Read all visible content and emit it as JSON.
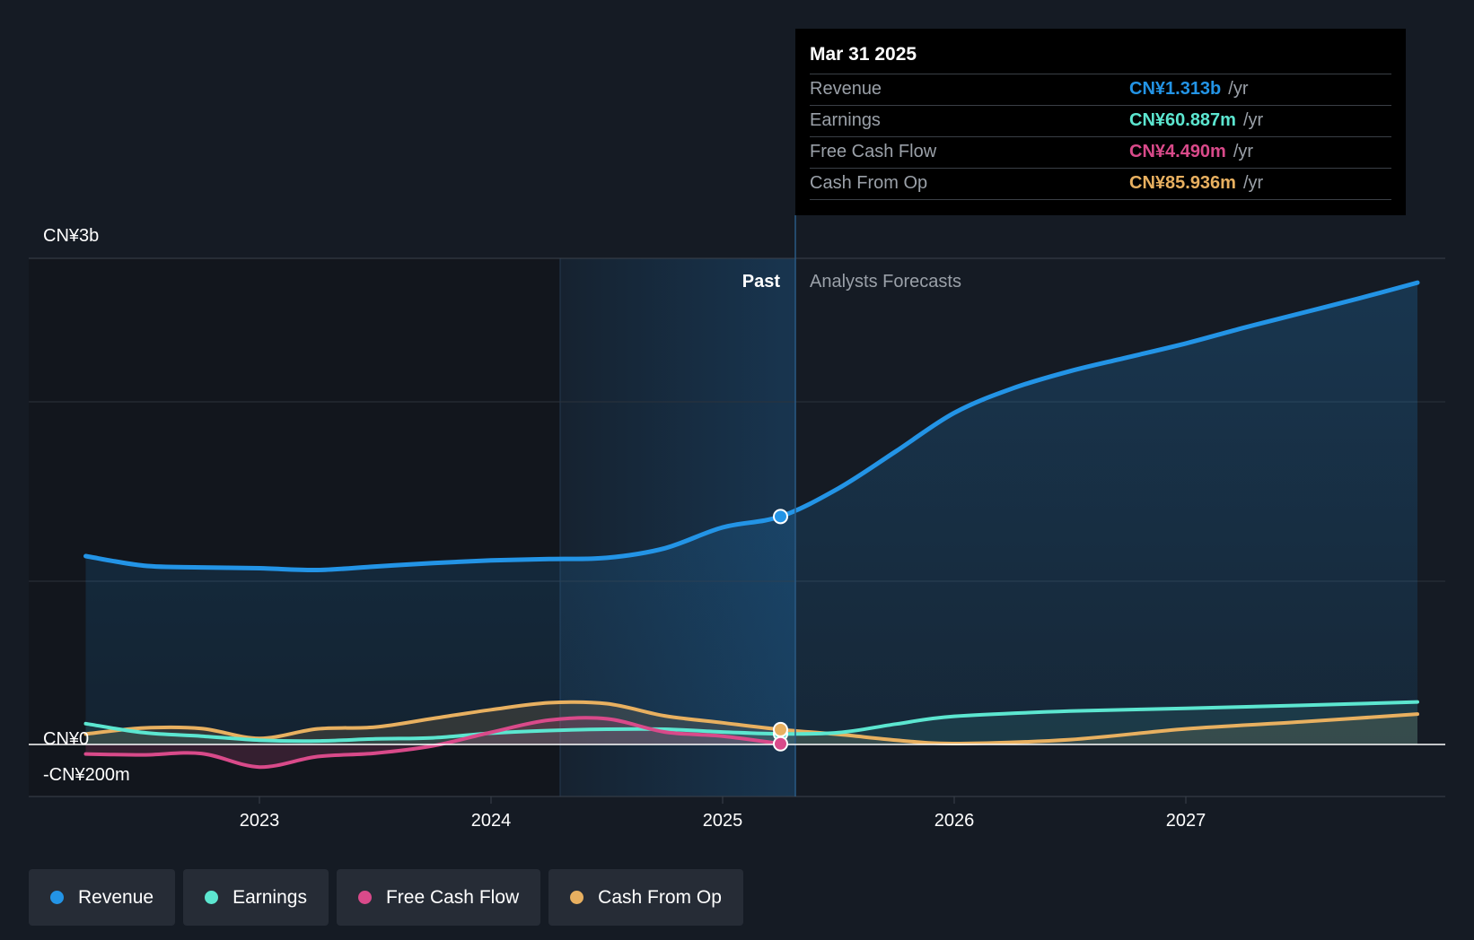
{
  "colors": {
    "revenue": "#2394e6",
    "earnings": "#5ce6d0",
    "fcf": "#d94a8a",
    "cfo": "#e8b060",
    "grid": "#3a414b",
    "zero": "#ffffff"
  },
  "tooltip": {
    "date": "Mar 31 2025",
    "unit": "/yr",
    "rows": [
      {
        "label": "Revenue",
        "value": "CN¥1.313b"
      },
      {
        "label": "Earnings",
        "value": "CN¥60.887m"
      },
      {
        "label": "Free Cash Flow",
        "value": "CN¥4.490m"
      },
      {
        "label": "Cash From Op",
        "value": "CN¥85.936m"
      }
    ]
  },
  "labels": {
    "past": "Past",
    "forecast": "Analysts Forecasts"
  },
  "legend": [
    {
      "label": "Revenue",
      "color": "#2394e6"
    },
    {
      "label": "Earnings",
      "color": "#5ce6d0"
    },
    {
      "label": "Free Cash Flow",
      "color": "#d94a8a"
    },
    {
      "label": "Cash From Op",
      "color": "#e8b060"
    }
  ],
  "chart_data": {
    "type": "line",
    "title": "",
    "xlabel": "",
    "ylabel": "",
    "y_unit": "CN¥ millions",
    "ylim": [
      -200,
      2800
    ],
    "xlim": [
      2022.0,
      2028.0
    ],
    "y_ticks": [
      {
        "value": 2800,
        "label": "CN¥3b"
      },
      {
        "value": 0,
        "label": "CN¥0"
      },
      {
        "value": -200,
        "label": "-CN¥200m"
      }
    ],
    "x_ticks": [
      {
        "value": 2023,
        "label": "2023"
      },
      {
        "value": 2024,
        "label": "2024"
      },
      {
        "value": 2025,
        "label": "2025"
      },
      {
        "value": 2026,
        "label": "2026"
      },
      {
        "value": 2027,
        "label": "2027"
      }
    ],
    "past_start": 2024.25,
    "divider_x": 2025.25,
    "series": [
      {
        "name": "Revenue",
        "key": "revenue",
        "x": [
          2022.25,
          2022.5,
          2022.75,
          2023.0,
          2023.25,
          2023.5,
          2023.75,
          2024.0,
          2024.25,
          2024.5,
          2024.75,
          2025.0,
          2025.25,
          2025.5,
          2025.75,
          2026.0,
          2026.25,
          2026.5,
          2026.75,
          2027.0,
          2027.25,
          2027.5,
          2027.75,
          2028.0
        ],
        "values": [
          1085,
          1030,
          1020,
          1015,
          1005,
          1025,
          1045,
          1060,
          1068,
          1075,
          1130,
          1250,
          1313,
          1475,
          1690,
          1910,
          2050,
          2150,
          2230,
          2310,
          2400,
          2485,
          2570,
          2660
        ]
      },
      {
        "name": "Earnings",
        "key": "earnings",
        "x": [
          2022.25,
          2022.5,
          2022.75,
          2023.0,
          2023.25,
          2023.5,
          2023.75,
          2024.0,
          2024.25,
          2024.5,
          2024.75,
          2025.0,
          2025.25,
          2025.5,
          2025.75,
          2026.0,
          2026.5,
          2027.0,
          2027.5,
          2028.0
        ],
        "values": [
          120,
          68,
          48,
          25,
          20,
          32,
          38,
          65,
          80,
          88,
          88,
          72,
          61,
          68,
          118,
          162,
          192,
          208,
          225,
          245
        ]
      },
      {
        "name": "Free Cash Flow",
        "key": "fcf",
        "x": [
          2022.25,
          2022.5,
          2022.75,
          2023.0,
          2023.25,
          2023.5,
          2023.75,
          2024.0,
          2024.25,
          2024.5,
          2024.75,
          2025.0,
          2025.25
        ],
        "values": [
          -55,
          -60,
          -52,
          -130,
          -70,
          -50,
          -8,
          70,
          140,
          148,
          72,
          48,
          4
        ]
      },
      {
        "name": "Cash From Op",
        "key": "cfo",
        "x": [
          2022.25,
          2022.5,
          2022.75,
          2023.0,
          2023.25,
          2023.5,
          2023.75,
          2024.0,
          2024.25,
          2024.5,
          2024.75,
          2025.0,
          2025.25,
          2025.5,
          2025.75,
          2026.0,
          2026.5,
          2027.0,
          2027.5,
          2028.0
        ],
        "values": [
          60,
          95,
          92,
          35,
          90,
          100,
          150,
          200,
          240,
          235,
          165,
          125,
          86,
          58,
          25,
          5,
          28,
          90,
          130,
          175
        ]
      }
    ],
    "markers": [
      {
        "series": "revenue",
        "x": 2025.25,
        "value": 1313
      },
      {
        "series": "earnings",
        "x": 2025.25,
        "value": 61
      },
      {
        "series": "cfo",
        "x": 2025.25,
        "value": 86
      },
      {
        "series": "fcf",
        "x": 2025.25,
        "value": 4
      }
    ]
  }
}
